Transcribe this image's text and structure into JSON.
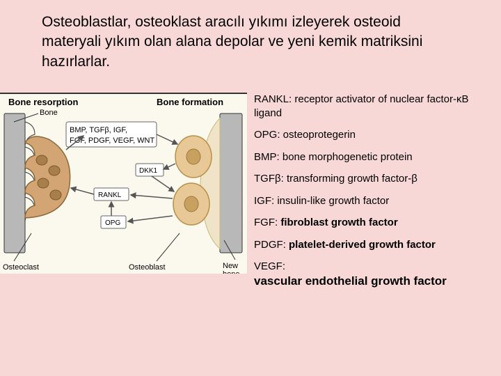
{
  "colors": {
    "page_bg": "#f8d7d7",
    "diagram_bg": "#fbf8ee",
    "text": "#000000",
    "bone_fill": "#b8b8b8",
    "bone_stroke": "#333333",
    "osteoclast_fill": "#d4a574",
    "osteoblast_fill": "#e8c896",
    "newbone_fill": "#f0e4c8",
    "label_box_fill": "#ffffff",
    "label_box_stroke": "#666666",
    "arrow": "#555555"
  },
  "typography": {
    "main_fontsize": 21,
    "gloss_fontsize": 15,
    "diagram_title_fontsize": 13,
    "diagram_label_fontsize": 11
  },
  "header": {
    "main_text": "Osteoblastlar, osteoklast aracılı yıkımı izleyerek osteoid materyali yıkım olan alana depolar ve yeni kemik matriksini hazırlarlar."
  },
  "diagram": {
    "title_left": "Bone resorption",
    "title_right": "Bone formation",
    "label_bone": "Bone",
    "label_osteoclast": "Osteoclast",
    "label_osteoblast": "Osteoblast",
    "label_newbone": "New bone",
    "box_factors": "BMP, TGFβ, IGF, FGF, PDGF, VEGF, WNT",
    "box_dkk1": "DKK1",
    "box_rankl": "RANKL",
    "box_opg": "OPG"
  },
  "glossary": [
    {
      "abbr": "RANKL:",
      "def": " receptor activator of nuclear factor-κB ligand",
      "bold_abbr": false,
      "bold_def": false
    },
    {
      "abbr": "OPG:",
      "def": " osteoprotegerin",
      "bold_abbr": false,
      "bold_def": false
    },
    {
      "abbr": "BMP:",
      "def": " bone morphogenetic protein",
      "bold_abbr": false,
      "bold_def": false
    },
    {
      "abbr": "TGFβ:",
      "def": " transforming growth factor-β",
      "bold_abbr": false,
      "bold_def": false
    },
    {
      "abbr": "IGF:",
      "def": " insulin-like growth factor",
      "bold_abbr": false,
      "bold_def": false
    },
    {
      "abbr": "FGF:",
      "def": " fibroblast growth factor",
      "bold_abbr": false,
      "bold_def": true
    },
    {
      "abbr": "PDGF:",
      "def": " platelet-derived growth factor",
      "bold_abbr": false,
      "bold_def": true
    },
    {
      "abbr": "VEGF:",
      "def": " vascular endothelial growth factor",
      "bold_abbr": false,
      "bold_def": true,
      "def_fontsize": 17
    }
  ]
}
